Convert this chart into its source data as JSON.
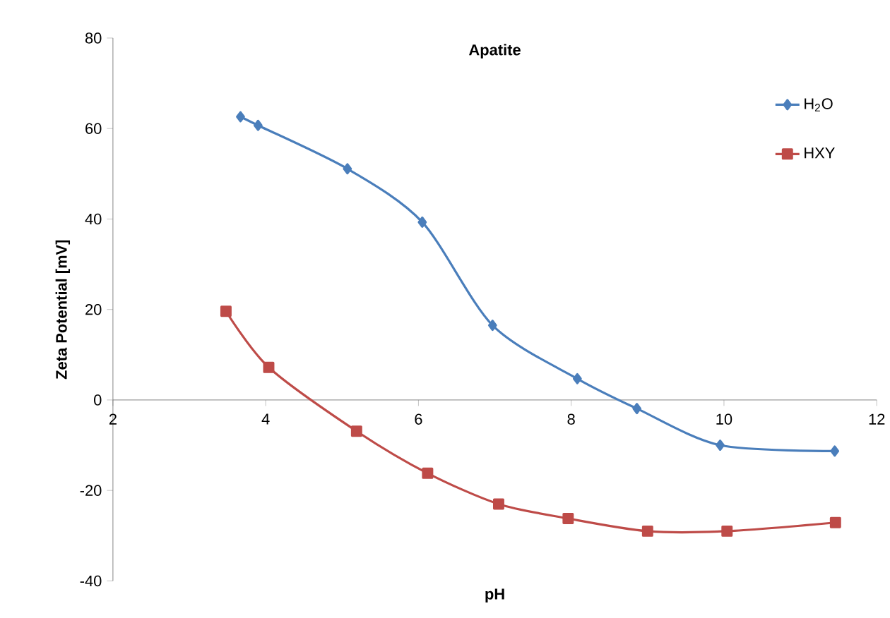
{
  "chart_data": {
    "type": "line",
    "title": "Apatite",
    "xlabel": "pH",
    "ylabel": "Zeta Potential [mV]",
    "xlim": [
      2,
      12
    ],
    "xticks": [
      2,
      4,
      6,
      8,
      10,
      12
    ],
    "ylim": [
      -40,
      80
    ],
    "yticks": [
      -40,
      -20,
      0,
      20,
      40,
      60,
      80
    ],
    "legend": "right",
    "grid": false,
    "line_style": "solid",
    "series": [
      {
        "name": "H$_{2}$O",
        "color": "#4a7ebb",
        "marker": "diamond",
        "x": [
          3.67,
          3.9,
          5.07,
          6.05,
          6.97,
          8.08,
          8.86,
          9.95,
          11.45
        ],
        "values": [
          62.6,
          60.7,
          51.1,
          39.3,
          16.5,
          4.7,
          -1.9,
          -10,
          -11.3
        ]
      },
      {
        "name": "HXY",
        "color": "#be4b48",
        "marker": "square",
        "x": [
          3.48,
          4.04,
          5.19,
          6.12,
          7.05,
          7.96,
          9.0,
          10.04,
          11.46
        ],
        "values": [
          19.6,
          7.2,
          -6.9,
          -16.2,
          -23,
          -26.2,
          -29,
          -29,
          -27.1
        ]
      }
    ]
  }
}
